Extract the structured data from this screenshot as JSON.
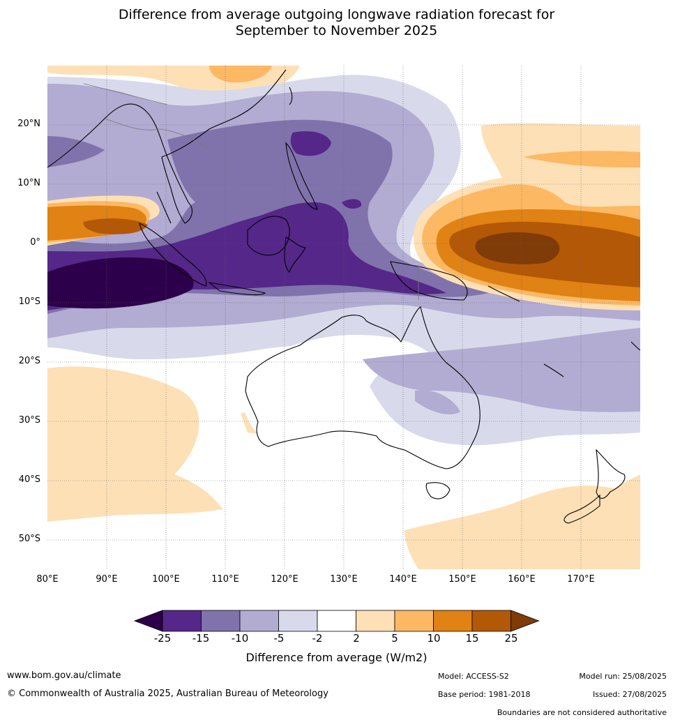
{
  "title": {
    "line1": "Difference from average outgoing longwave radiation forecast for",
    "line2": "September to November 2025"
  },
  "map": {
    "lon_range": [
      80,
      180
    ],
    "lat_range": [
      -55,
      30
    ],
    "lat_ticks": [
      "20°N",
      "10°N",
      "0°",
      "10°S",
      "20°S",
      "30°S",
      "40°S",
      "50°S"
    ],
    "lon_ticks": [
      "80°E",
      "90°E",
      "100°E",
      "110°E",
      "120°E",
      "130°E",
      "140°E",
      "150°E",
      "160°E",
      "170°E"
    ]
  },
  "colorbar": {
    "ticks": [
      "-25",
      "-15",
      "-10",
      "-5",
      "-2",
      "2",
      "5",
      "10",
      "15",
      "25"
    ],
    "colors": [
      "#2d004b",
      "#542788",
      "#8073ac",
      "#b2abd2",
      "#d8daeb",
      "#ffffff",
      "#fee0b6",
      "#fdb863",
      "#e08214",
      "#b35806",
      "#7f3b08"
    ],
    "title": "Difference from average (W/m2)"
  },
  "footer": {
    "url": "www.bom.gov.au/climate",
    "copyright": "© Commonwealth of Australia 2025, Australian Bureau of Meteorology",
    "model": "Model: ACCESS-S2",
    "base_period": "Base period: 1981-2018",
    "model_run": "Model run: 25/08/2025",
    "issued": "Issued: 27/08/2025",
    "disclaimer": "Boundaries are not considered authoritative"
  }
}
